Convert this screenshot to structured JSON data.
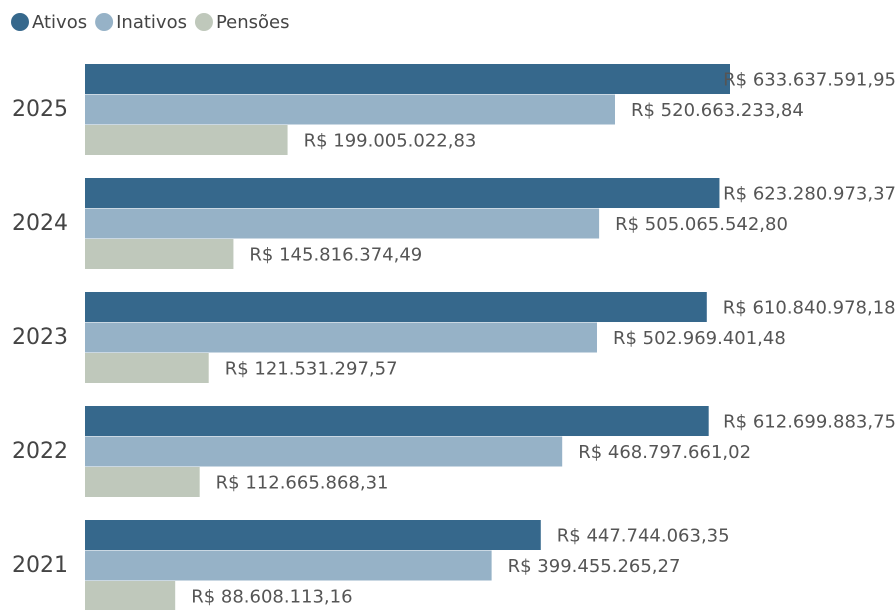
{
  "chart_data": {
    "type": "bar",
    "orientation": "horizontal",
    "categories": [
      "2025",
      "2024",
      "2023",
      "2022",
      "2021"
    ],
    "series": [
      {
        "name": "Ativos",
        "color": "#36688c",
        "values": [
          633637591.95,
          623280973.37,
          610840978.18,
          612699883.75,
          447744063.35
        ],
        "value_labels": [
          "R$ 633.637.591,95",
          "R$ 623.280.973,37",
          "R$ 610.840.978,18",
          "R$ 612.699.883,75",
          "R$ 447.744.063,35"
        ]
      },
      {
        "name": "Inativos",
        "color": "#96b2c7",
        "values": [
          520663233.84,
          505065542.8,
          502969401.48,
          468797661.02,
          399455265.27
        ],
        "value_labels": [
          "R$ 520.663.233,84",
          "R$ 505.065.542,80",
          "R$ 502.969.401,48",
          "R$ 468.797.661,02",
          "R$ 399.455.265,27"
        ]
      },
      {
        "name": "Pensões",
        "color": "#bfc8bb",
        "values": [
          199005022.83,
          145816374.49,
          121531297.57,
          112665868.31,
          88608113.16
        ],
        "value_labels": [
          "R$ 199.005.022,83",
          "R$ 145.816.374,49",
          "R$ 121.531.297,57",
          "R$ 112.665.868,31",
          "R$ 88.608.113,16"
        ]
      }
    ],
    "legend": "top-left"
  }
}
